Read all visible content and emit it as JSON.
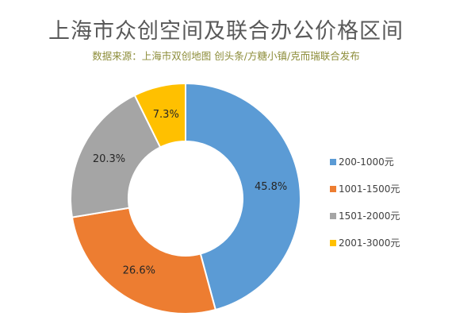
{
  "chart_data": {
    "type": "pie",
    "variant": "donut",
    "title": "上海市众创空间及联合办公价格区间",
    "subtitle": "数据来源：上海市双创地图  创头条/方糖小镇/克而瑞联合发布",
    "categories": [
      "200-1000元",
      "1001-1500元",
      "1501-2000元",
      "2001-3000元"
    ],
    "values": [
      45.8,
      26.6,
      20.3,
      7.3
    ],
    "value_labels": [
      "45.8%",
      "26.6%",
      "20.3%",
      "7.3%"
    ],
    "colors": [
      "#5b9bd5",
      "#ed7d31",
      "#a5a5a5",
      "#ffc000"
    ],
    "legend_position": "right"
  }
}
